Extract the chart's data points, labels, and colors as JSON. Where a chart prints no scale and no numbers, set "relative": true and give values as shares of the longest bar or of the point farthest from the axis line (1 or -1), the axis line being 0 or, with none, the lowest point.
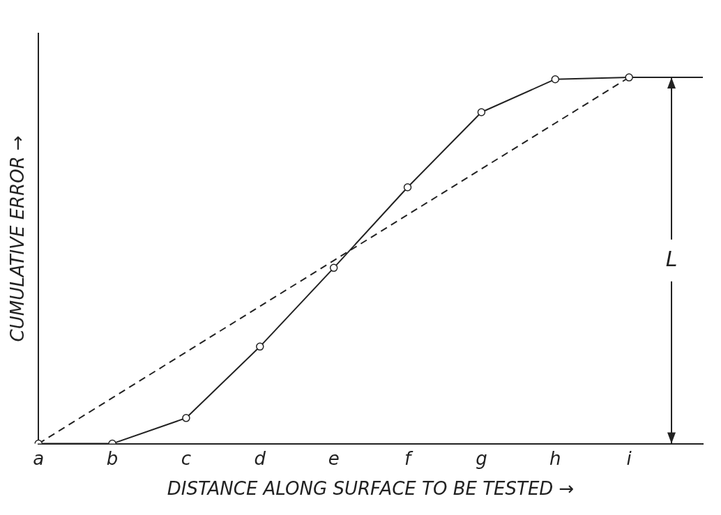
{
  "chart_data": {
    "type": "line",
    "relative": true,
    "xlabel": "DISTANCE ALONG SURFACE TO BE TESTED →",
    "ylabel": "CUMULATIVE ERROR →",
    "categories": [
      "a",
      "b",
      "c",
      "d",
      "e",
      "f",
      "g",
      "h",
      "i",
      null
    ],
    "series": [
      {
        "color": "#222222",
        "marker": "circle",
        "line_style": "solid",
        "values": [
          0,
          0,
          0.07,
          0.265,
          0.48,
          0.7,
          0.905,
          0.995,
          1,
          1
        ]
      },
      {
        "color": "#222222",
        "marker": "none",
        "line_style": "dashed",
        "values": [
          0,
          0.125,
          0.25,
          0.375,
          0.5,
          0.625,
          0.75,
          0.875,
          1,
          null
        ]
      }
    ],
    "annotations": [
      "L"
    ],
    "grid": false,
    "legend": false
  }
}
